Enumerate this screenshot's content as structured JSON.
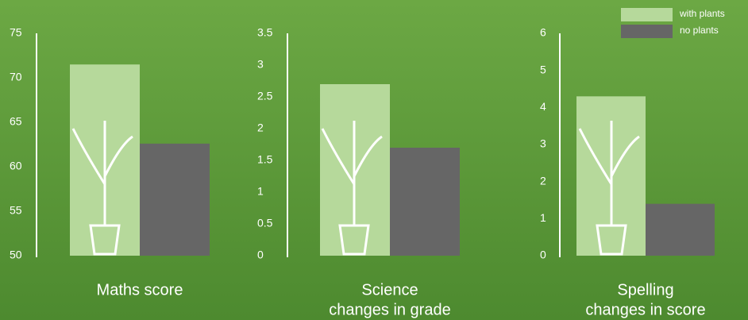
{
  "chart_data": [
    {
      "type": "bar",
      "xlabel": [
        "Maths score"
      ],
      "ylim": [
        50,
        75
      ],
      "yticks": [
        50,
        55,
        60,
        65,
        70,
        75
      ],
      "series": [
        {
          "name": "with plants",
          "color": "#b6d99b",
          "values": [
            71.5
          ]
        },
        {
          "name": "no plants",
          "color": "#666666",
          "values": [
            62.6
          ]
        }
      ]
    },
    {
      "type": "bar",
      "xlabel": [
        "Science",
        "changes in grade"
      ],
      "ylim": [
        0,
        3.5
      ],
      "yticks": [
        0,
        0.5,
        1,
        1.5,
        2,
        2.5,
        3,
        3.5
      ],
      "series": [
        {
          "name": "with plants",
          "color": "#b6d99b",
          "values": [
            2.7
          ]
        },
        {
          "name": "no plants",
          "color": "#666666",
          "values": [
            1.7
          ]
        }
      ]
    },
    {
      "type": "bar",
      "xlabel": [
        "Spelling",
        "changes in score"
      ],
      "ylim": [
        0,
        6
      ],
      "yticks": [
        0,
        1,
        2,
        3,
        4,
        5,
        6
      ],
      "series": [
        {
          "name": "with plants",
          "color": "#b6d99b",
          "values": [
            4.3
          ]
        },
        {
          "name": "no plants",
          "color": "#666666",
          "values": [
            1.4
          ]
        }
      ]
    }
  ]
}
